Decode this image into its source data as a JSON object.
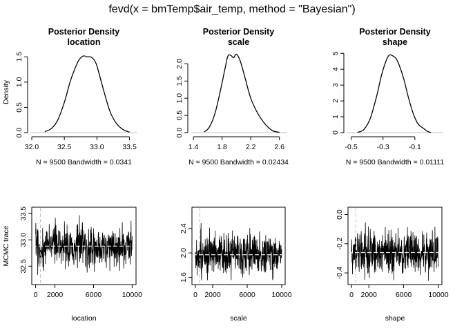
{
  "figure_title": "fevd(x = bmTemp$air_temp, method = \"Bayesian\")",
  "colors": {
    "line": "#000000",
    "reference": "#c0c0c0",
    "mean_line": "#bebebe"
  },
  "chart_data": [
    {
      "type": "line",
      "panel": "density-location",
      "title": "Posterior Density",
      "subtitle": "location",
      "ylabel": "Density",
      "note": "N = 9500   Bandwidth = 0.0341",
      "xlim": [
        32.0,
        33.6
      ],
      "ylim": [
        0,
        1.6
      ],
      "xticks": [
        32.0,
        32.5,
        33.0,
        33.5
      ],
      "xtick_labels": [
        "32.0",
        "32.5",
        "33.0",
        "33.5"
      ],
      "yticks": [
        0.0,
        0.5,
        1.0,
        1.5
      ],
      "ytick_labels": [
        "0.0",
        "0.5",
        "1.0",
        "1.5"
      ],
      "x": [
        32.2,
        32.3,
        32.4,
        32.5,
        32.6,
        32.7,
        32.75,
        32.8,
        32.85,
        32.9,
        32.95,
        33.0,
        33.1,
        33.2,
        33.3,
        33.4,
        33.5
      ],
      "y": [
        0.02,
        0.08,
        0.25,
        0.6,
        1.05,
        1.38,
        1.48,
        1.52,
        1.5,
        1.5,
        1.45,
        1.32,
        0.85,
        0.42,
        0.18,
        0.06,
        0.01
      ]
    },
    {
      "type": "line",
      "panel": "density-scale",
      "title": "Posterior Density",
      "subtitle": "scale",
      "ylabel": "",
      "note": "N = 9500   Bandwidth = 0.02434",
      "xlim": [
        1.38,
        2.68
      ],
      "ylim": [
        0,
        2.35
      ],
      "xticks": [
        1.4,
        1.8,
        2.2,
        2.6
      ],
      "xtick_labels": [
        "1.4",
        "1.8",
        "2.2",
        "2.6"
      ],
      "yticks": [
        0.0,
        0.5,
        1.0,
        1.5,
        2.0
      ],
      "ytick_labels": [
        "0.0",
        "0.5",
        "1.0",
        "1.5",
        "2.0"
      ],
      "x": [
        1.55,
        1.62,
        1.7,
        1.78,
        1.84,
        1.88,
        1.92,
        1.96,
        2.0,
        2.05,
        2.12,
        2.2,
        2.3,
        2.4,
        2.5,
        2.6
      ],
      "y": [
        0.02,
        0.15,
        0.55,
        1.25,
        1.85,
        2.22,
        2.25,
        2.18,
        2.28,
        2.1,
        1.6,
        1.0,
        0.55,
        0.25,
        0.06,
        0.01
      ]
    },
    {
      "type": "line",
      "panel": "density-shape",
      "title": "Posterior Density",
      "subtitle": "shape",
      "ylabel": "",
      "note": "N = 9500   Bandwidth = 0.01111",
      "xlim": [
        -0.52,
        0.07
      ],
      "ylim": [
        0,
        5.1
      ],
      "xticks": [
        -0.5,
        -0.3,
        -0.1
      ],
      "xtick_labels": [
        "-0.5",
        "-0.3",
        "-0.1"
      ],
      "yticks": [
        0,
        1,
        2,
        3,
        4,
        5
      ],
      "ytick_labels": [
        "0",
        "1",
        "2",
        "3",
        "4",
        "5"
      ],
      "x": [
        -0.46,
        -0.42,
        -0.38,
        -0.34,
        -0.31,
        -0.28,
        -0.26,
        -0.24,
        -0.22,
        -0.2,
        -0.17,
        -0.14,
        -0.11,
        -0.08,
        -0.05,
        -0.02,
        0.0
      ],
      "y": [
        0.02,
        0.2,
        0.9,
        2.3,
        3.6,
        4.55,
        4.9,
        4.85,
        4.7,
        4.3,
        3.4,
        2.2,
        1.2,
        0.55,
        0.3,
        0.08,
        0.01
      ]
    },
    {
      "type": "line",
      "panel": "trace-location",
      "ylabel": "MCMC trace",
      "xlabel": "location",
      "xlim": [
        -400,
        10400
      ],
      "ylim": [
        32.15,
        33.62
      ],
      "xticks": [
        0,
        2000,
        6000,
        10000
      ],
      "xtick_labels": [
        "0",
        "2000",
        "6000",
        "10000"
      ],
      "yticks": [
        32.5,
        33.0,
        33.5
      ],
      "ytick_labels": [
        "32.5",
        "33.0",
        "33.5"
      ],
      "burn_in": 500,
      "mean": 32.88,
      "n_iter": 10000,
      "band": [
        32.3,
        33.55
      ]
    },
    {
      "type": "line",
      "panel": "trace-scale",
      "ylabel": "",
      "xlabel": "scale",
      "xlim": [
        -400,
        10400
      ],
      "ylim": [
        1.48,
        2.75
      ],
      "xticks": [
        0,
        2000,
        6000,
        10000
      ],
      "xtick_labels": [
        "0",
        "2000",
        "6000",
        "10000"
      ],
      "yticks": [
        1.6,
        2.0,
        2.4
      ],
      "ytick_labels": [
        "1.6",
        "2.0",
        "2.4"
      ],
      "burn_in": 500,
      "mean": 1.97,
      "n_iter": 10000,
      "band": [
        1.55,
        2.6
      ]
    },
    {
      "type": "line",
      "panel": "trace-shape",
      "ylabel": "",
      "xlabel": "shape",
      "xlim": [
        -400,
        10400
      ],
      "ylim": [
        -0.48,
        0.05
      ],
      "xticks": [
        0,
        2000,
        6000,
        10000
      ],
      "xtick_labels": [
        "0",
        "2000",
        "6000",
        "10000"
      ],
      "yticks": [
        -0.4,
        -0.2,
        0.0
      ],
      "ytick_labels": [
        "-0.4",
        "-0.2",
        "0.0"
      ],
      "burn_in": 500,
      "mean": -0.26,
      "n_iter": 10000,
      "band": [
        -0.46,
        0.0
      ]
    }
  ]
}
